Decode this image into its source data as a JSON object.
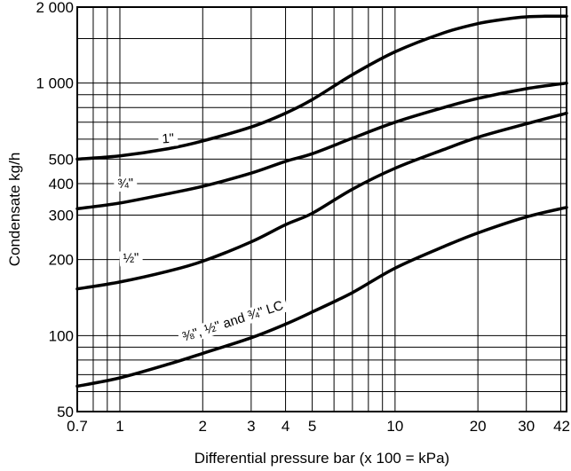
{
  "chart_data": {
    "type": "line",
    "title": "",
    "xlabel": "Differential pressure bar (x 100 = kPa)",
    "ylabel": "Condensate kg/h",
    "x_scale": "log",
    "y_scale": "log",
    "xlim": [
      0.7,
      42
    ],
    "ylim": [
      50,
      2000
    ],
    "grid": true,
    "x_ticks": [
      0.7,
      1,
      2,
      3,
      4,
      5,
      10,
      20,
      30,
      42
    ],
    "x_tick_labels": [
      "0.7",
      "1",
      "2",
      "3",
      "4",
      "5",
      "10",
      "20",
      "30",
      "42"
    ],
    "y_ticks": [
      50,
      100,
      200,
      300,
      400,
      500,
      1000,
      2000
    ],
    "y_tick_labels": [
      "50",
      "100",
      "200",
      "300",
      "400",
      "500",
      "1 000",
      "2 000"
    ],
    "x_grid": [
      0.7,
      0.8,
      0.9,
      1,
      2,
      3,
      4,
      5,
      6,
      7,
      8,
      9,
      10,
      20,
      30,
      40
    ],
    "y_grid": [
      50,
      60,
      70,
      80,
      90,
      100,
      200,
      300,
      400,
      500,
      600,
      700,
      800,
      900,
      1000,
      1500,
      2000
    ],
    "series": [
      {
        "name": "1\"",
        "x": [
          0.7,
          1,
          1.5,
          2,
          3,
          4,
          5,
          7,
          10,
          15,
          20,
          25,
          30,
          35,
          42
        ],
        "y": [
          500,
          515,
          550,
          590,
          670,
          760,
          860,
          1080,
          1330,
          1580,
          1720,
          1790,
          1830,
          1840,
          1840
        ]
      },
      {
        "name": "3/4\"",
        "x": [
          0.7,
          1,
          1.5,
          2,
          3,
          4,
          5,
          7,
          10,
          15,
          20,
          30,
          42
        ],
        "y": [
          318,
          335,
          365,
          390,
          440,
          490,
          525,
          605,
          700,
          800,
          870,
          950,
          1000
        ]
      },
      {
        "name": "1/2\"",
        "x": [
          0.7,
          1,
          1.5,
          2,
          3,
          4,
          5,
          7,
          10,
          15,
          20,
          30,
          42
        ],
        "y": [
          153,
          163,
          180,
          197,
          235,
          275,
          305,
          380,
          460,
          545,
          610,
          690,
          760
        ]
      },
      {
        "name": "3/8\", 1/2\" and 3/4\" LC",
        "x": [
          0.7,
          1,
          1.5,
          2,
          3,
          4,
          5,
          7,
          10,
          15,
          20,
          30,
          42
        ],
        "y": [
          63,
          68,
          77,
          85,
          98,
          111,
          124,
          148,
          185,
          225,
          255,
          295,
          322
        ]
      }
    ],
    "curve_labels": [
      {
        "text": "1\"",
        "x": 1.5,
        "y": 580,
        "rotate": -4
      },
      {
        "text": "¾\"",
        "x": 1.05,
        "y": 385,
        "rotate": -3
      },
      {
        "text": "½\"",
        "x": 1.1,
        "y": 195,
        "rotate": -3
      },
      {
        "text": "⅜\", ½\" and ¾\" LC",
        "x": 2.6,
        "y": 110,
        "rotate": -18
      }
    ]
  }
}
